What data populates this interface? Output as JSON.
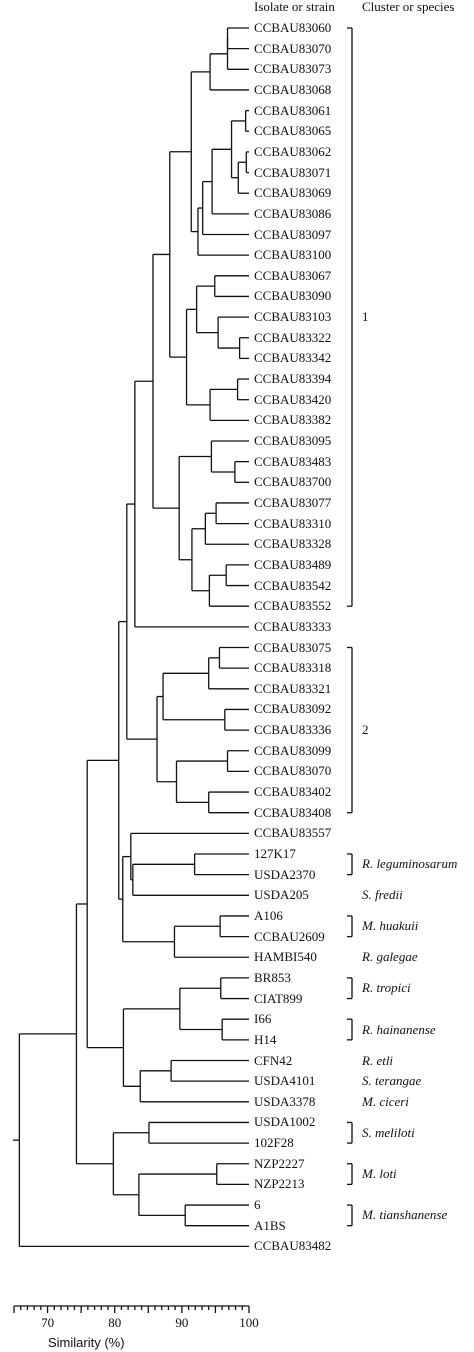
{
  "header": {
    "isolate_col": "Isolate or strain",
    "cluster_col": "Cluster or species"
  },
  "leaves": [
    "CCBAU83060",
    "CCBAU83070",
    "CCBAU83073",
    "CCBAU83068",
    "CCBAU83061",
    "CCBAU83065",
    "CCBAU83062",
    "CCBAU83071",
    "CCBAU83069",
    "CCBAU83086",
    "CCBAU83097",
    "CCBAU83100",
    "CCBAU83067",
    "CCBAU83090",
    "CCBAU83103",
    "CCBAU83322",
    "CCBAU83342",
    "CCBAU83394",
    "CCBAU83420",
    "CCBAU83382",
    "CCBAU83095",
    "CCBAU83483",
    "CCBAU83700",
    "CCBAU83077",
    "CCBAU83310",
    "CCBAU83328",
    "CCBAU83489",
    "CCBAU83542",
    "CCBAU83552",
    "CCBAU83333",
    "CCBAU83075",
    "CCBAU83318",
    "CCBAU83321",
    "CCBAU83092",
    "CCBAU83336",
    "CCBAU83099",
    "CCBAU83070",
    "CCBAU83402",
    "CCBAU83408",
    "CCBAU83557",
    "127K17",
    "USDA2370",
    "USDA205",
    "A106",
    "CCBAU2609",
    "HAMBI540",
    "BR853",
    "CIAT899",
    "I66",
    "H14",
    "CFN42",
    "USDA4101",
    "USDA3378",
    "USDA1002",
    "102F28",
    "NZP2227",
    "NZP2213",
    "6",
    "A1BS",
    "CCBAU83482"
  ],
  "groups": [
    {
      "label": "1",
      "from": 0,
      "to": 28,
      "italic": false,
      "bracket": true
    },
    {
      "label": "2",
      "from": 30,
      "to": 38,
      "italic": false,
      "bracket": true
    },
    {
      "label": "R. leguminosarum",
      "from": 40,
      "to": 41,
      "italic": true,
      "bracket": true
    },
    {
      "label": "S. fredii",
      "from": 42,
      "to": 42,
      "italic": true,
      "bracket": false
    },
    {
      "label": "M. huakuii",
      "from": 43,
      "to": 44,
      "italic": true,
      "bracket": true
    },
    {
      "label": "R. galegae",
      "from": 45,
      "to": 45,
      "italic": true,
      "bracket": false
    },
    {
      "label": "R. tropici",
      "from": 46,
      "to": 47,
      "italic": true,
      "bracket": true
    },
    {
      "label": "R. hainanense",
      "from": 48,
      "to": 49,
      "italic": true,
      "bracket": true
    },
    {
      "label": "R. etli",
      "from": 50,
      "to": 50,
      "italic": true,
      "bracket": false
    },
    {
      "label": "S. terangae",
      "from": 51,
      "to": 51,
      "italic": true,
      "bracket": false
    },
    {
      "label": "M. ciceri",
      "from": 52,
      "to": 52,
      "italic": true,
      "bracket": false
    },
    {
      "label": "S. meliloti",
      "from": 53,
      "to": 54,
      "italic": true,
      "bracket": true
    },
    {
      "label": "M. loti",
      "from": 55,
      "to": 56,
      "italic": true,
      "bracket": true
    },
    {
      "label": "M. tianshanense",
      "from": 57,
      "to": 58,
      "italic": true,
      "bracket": true
    }
  ],
  "tree": [
    "n",
    65.8,
    [
      "n",
      74.3,
      [
        "n",
        75.9,
        [
          "n",
          80.6,
          [
            "n",
            81.8,
            [
              "n",
              83,
              [
                "n",
                85.7,
                [
                  "n",
                  88.2,
                  [
                    "n",
                    91.4,
                    [
                      "n",
                      94.2,
                      [
                        "n",
                        96.8,
                        [
                          "n",
                          96.8,
                          0,
                          1
                        ],
                        2
                      ],
                      3
                    ],
                    [
                      "n",
                      92.4,
                      [
                        "n",
                        93.1,
                        [
                          "n",
                          94.5,
                          [
                            "n",
                            97.4,
                            [
                              "n",
                              99.5,
                              4,
                              5
                            ],
                            [
                              "n",
                              98.4,
                              [
                                "n",
                                99.6,
                                6,
                                7
                              ],
                              8
                            ]
                          ],
                          9
                        ],
                        10
                      ],
                      11
                    ]
                  ],
                  [
                    "n",
                    90.7,
                    [
                      "n",
                      92.2,
                      [
                        "n",
                        94.9,
                        12,
                        13
                      ],
                      [
                        "n",
                        95.4,
                        14,
                        [
                          "n",
                          98.6,
                          15,
                          16
                        ]
                      ]
                    ],
                    [
                      "n",
                      94.2,
                      [
                        "n",
                        98.3,
                        17,
                        18
                      ],
                      19
                    ]
                  ]
                ],
                [
                  "n",
                  89.6,
                  [
                    "n",
                    94.4,
                    20,
                    [
                      "n",
                      97.9,
                      21,
                      22
                    ]
                  ],
                  [
                    "n",
                    91.5,
                    [
                      "n",
                      93.5,
                      [
                        "n",
                        95.1,
                        23,
                        24
                      ],
                      25
                    ],
                    [
                      "n",
                      94.1,
                      [
                        "n",
                        96.6,
                        26,
                        27
                      ],
                      28
                    ]
                  ]
                ]
              ],
              29
            ],
            [
              "n",
              86.3,
              [
                "n",
                87.2,
                [
                  "n",
                  94,
                  [
                    "n",
                    95.6,
                    30,
                    31
                  ],
                  32
                ],
                [
                  "n",
                  96.4,
                  33,
                  34
                ]
              ],
              [
                "n",
                89.2,
                [
                  "n",
                  96.8,
                  35,
                  36
                ],
                [
                  "n",
                  94,
                  37,
                  38
                ]
              ]
            ]
          ],
          [
            "n",
            81.2,
            [
              "n",
              82.4,
              39,
              [
                "n",
                82.7,
                [
                  "n",
                  91.9,
                  40,
                  41
                ],
                42
              ]
            ],
            [
              "n",
              88.9,
              [
                "n",
                95.7,
                43,
                44
              ],
              45
            ]
          ]
        ],
        [
          "n",
          81.3,
          [
            "n",
            89.7,
            [
              "n",
              95.8,
              46,
              47
            ],
            [
              "n",
              96,
              48,
              49
            ]
          ],
          [
            "n",
            83.8,
            [
              "n",
              88.4,
              50,
              51
            ],
            52
          ]
        ]
      ],
      [
        "n",
        79.8,
        [
          "n",
          85.1,
          53,
          54
        ],
        [
          "n",
          83.6,
          [
            "n",
            95.2,
            55,
            56
          ],
          [
            "n",
            90.5,
            57,
            58
          ]
        ]
      ]
    ],
    59
  ],
  "axis": {
    "min": 65,
    "max": 100,
    "ticks": [
      70,
      80,
      90,
      100
    ],
    "label": "Similarity (%)"
  }
}
